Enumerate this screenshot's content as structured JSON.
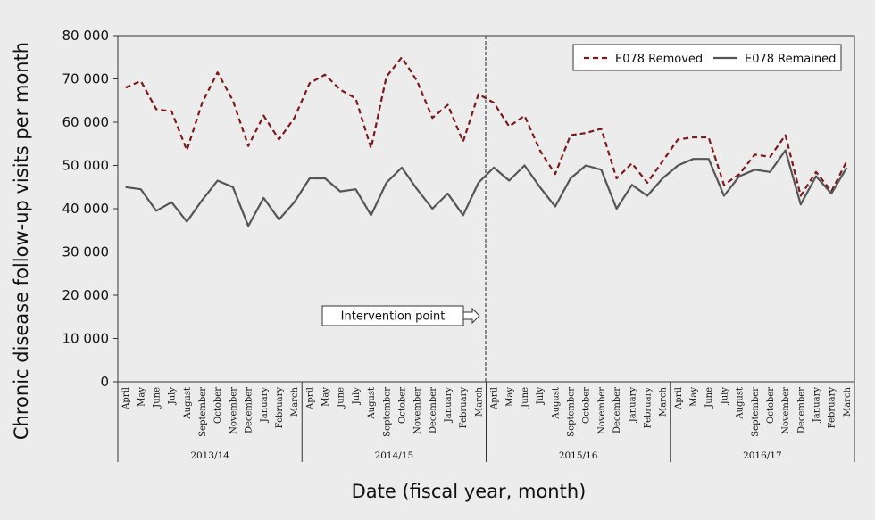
{
  "chart_data": {
    "type": "line",
    "xlabel": "Date (fiscal year, month)",
    "ylabel": "Chronic disease follow-up visits per month",
    "ylim": [
      0,
      80000
    ],
    "yticks": [
      "0",
      "10 000",
      "20 000",
      "30 000",
      "40 000",
      "50 000",
      "60 000",
      "70 000",
      "80 000"
    ],
    "fiscal_years": [
      "2013/14",
      "2014/15",
      "2015/16",
      "2016/17"
    ],
    "months": [
      "April",
      "May",
      "June",
      "July",
      "August",
      "September",
      "October",
      "November",
      "December",
      "January",
      "February",
      "March"
    ],
    "grid": false,
    "legend_position": "top-right",
    "annotation": {
      "label": "Intervention point",
      "at_index": 24
    },
    "series": [
      {
        "name": "E078 Removed",
        "style": "dashed",
        "color": "#7a1a1a",
        "values": [
          68000,
          69500,
          63000,
          62500,
          53500,
          64500,
          71500,
          65000,
          54500,
          61500,
          56000,
          61000,
          69000,
          71000,
          67500,
          65500,
          54000,
          70500,
          75000,
          69500,
          61000,
          64000,
          55500,
          66500,
          64500,
          59000,
          61500,
          53500,
          48000,
          57000,
          57500,
          58500,
          47000,
          50500,
          46000,
          51000,
          56000,
          56500,
          56500,
          45500,
          48000,
          52500,
          52000,
          57000,
          43000,
          48500,
          44000,
          51000
        ]
      },
      {
        "name": "E078 Remained",
        "style": "solid",
        "color": "#555555",
        "values": [
          45000,
          44500,
          39500,
          41500,
          37000,
          42000,
          46500,
          45000,
          36000,
          42500,
          37500,
          41500,
          47000,
          47000,
          44000,
          44500,
          38500,
          46000,
          49500,
          44500,
          40000,
          43500,
          38500,
          46000,
          49500,
          46500,
          50000,
          45000,
          40500,
          47000,
          50000,
          49000,
          40000,
          45500,
          43000,
          47000,
          50000,
          51500,
          51500,
          43000,
          47500,
          49000,
          48500,
          53500,
          41000,
          47500,
          43500,
          49500
        ]
      }
    ]
  }
}
